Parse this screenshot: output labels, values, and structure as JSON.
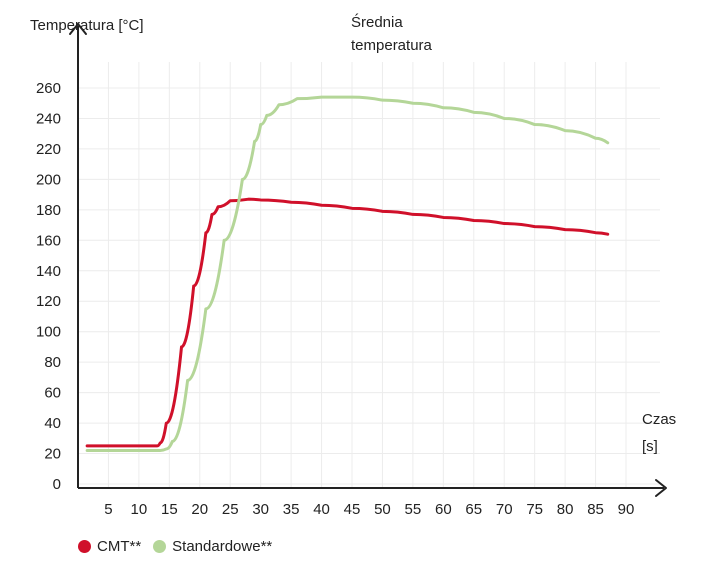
{
  "chart_data": {
    "type": "line",
    "title": "",
    "ylabel": "Temperatura [°C]",
    "xlabel_line1": "Czas",
    "xlabel_line2": "[s]",
    "annotation_line1": "Średnia",
    "annotation_line2": "temperatura",
    "xlim": [
      0,
      90
    ],
    "ylim": [
      0,
      260
    ],
    "x_ticks": [
      5,
      10,
      15,
      20,
      25,
      30,
      35,
      40,
      45,
      50,
      55,
      60,
      65,
      70,
      75,
      80,
      85,
      90
    ],
    "y_ticks": [
      0,
      20,
      40,
      60,
      80,
      100,
      120,
      140,
      160,
      180,
      200,
      220,
      240,
      260
    ],
    "grid": true,
    "legend_position": "bottom-left",
    "series": [
      {
        "name": "CMT**",
        "color": "#d0102a",
        "points": [
          [
            1.5,
            25
          ],
          [
            13,
            25
          ],
          [
            13.5,
            27
          ],
          [
            14.5,
            40
          ],
          [
            17,
            90
          ],
          [
            19,
            130
          ],
          [
            21,
            165
          ],
          [
            22,
            177
          ],
          [
            23,
            182
          ],
          [
            25,
            186
          ],
          [
            28,
            187
          ],
          [
            30,
            186.5
          ],
          [
            35,
            185
          ],
          [
            40,
            183
          ],
          [
            45,
            181
          ],
          [
            50,
            179
          ],
          [
            55,
            177
          ],
          [
            60,
            175
          ],
          [
            65,
            173
          ],
          [
            70,
            171
          ],
          [
            75,
            169
          ],
          [
            80,
            167
          ],
          [
            85,
            165
          ],
          [
            87,
            164
          ]
        ]
      },
      {
        "name": "Standardowe**",
        "color": "#b4d698",
        "points": [
          [
            1.5,
            22
          ],
          [
            13.5,
            22
          ],
          [
            14.5,
            23
          ],
          [
            15.5,
            28
          ],
          [
            18,
            68
          ],
          [
            21,
            115
          ],
          [
            24,
            160
          ],
          [
            27,
            200
          ],
          [
            29,
            225
          ],
          [
            30,
            236
          ],
          [
            31,
            242
          ],
          [
            33,
            249
          ],
          [
            36,
            253
          ],
          [
            40,
            254
          ],
          [
            45,
            254
          ],
          [
            50,
            252
          ],
          [
            55,
            250
          ],
          [
            60,
            247
          ],
          [
            65,
            244
          ],
          [
            70,
            240
          ],
          [
            75,
            236
          ],
          [
            80,
            232
          ],
          [
            85,
            227
          ],
          [
            87,
            224
          ]
        ]
      }
    ]
  }
}
